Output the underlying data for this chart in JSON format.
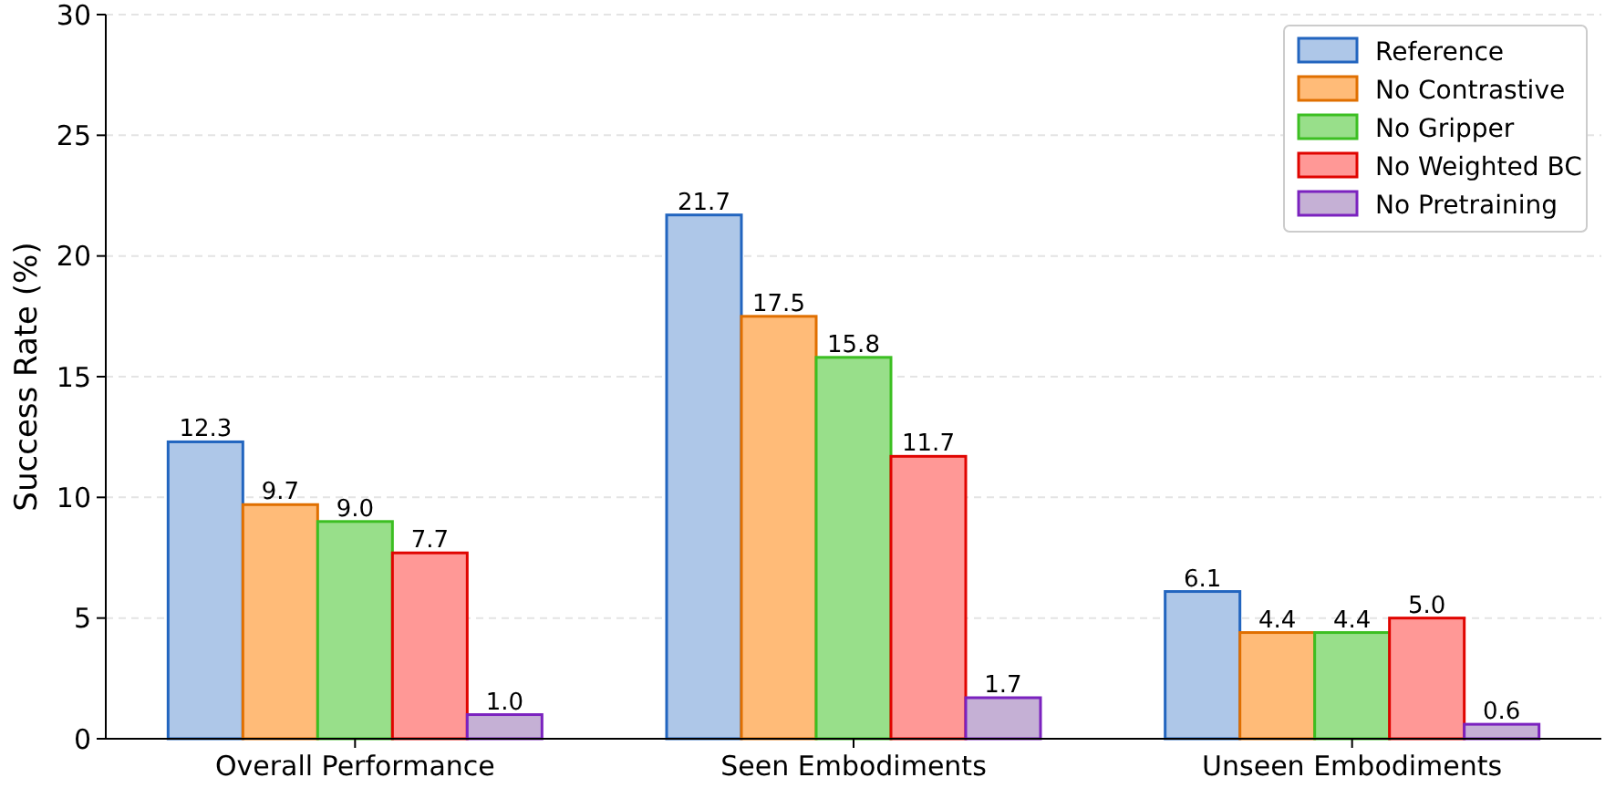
{
  "chart_data": {
    "type": "bar",
    "ylabel": "Success Rate (%)",
    "categories": [
      "Overall Performance",
      "Seen Embodiments",
      "Unseen Embodiments"
    ],
    "series": [
      {
        "name": "Reference",
        "color": "#aec7e8",
        "values": [
          12.3,
          21.7,
          6.1
        ],
        "value_labels": [
          "12.3",
          "21.7",
          "6.1"
        ]
      },
      {
        "name": "No Contrastive",
        "color": "#ffbb78",
        "values": [
          9.7,
          17.5,
          4.4
        ],
        "value_labels": [
          "9.7",
          "17.5",
          "4.4"
        ]
      },
      {
        "name": "No Gripper",
        "color": "#98df8a",
        "values": [
          9.0,
          15.8,
          4.4
        ],
        "value_labels": [
          "9.0",
          "15.8",
          "4.4"
        ]
      },
      {
        "name": "No Weighted BC",
        "color": "#ff9896",
        "values": [
          7.7,
          11.7,
          5.0
        ],
        "value_labels": [
          "7.7",
          "11.7",
          "5.0"
        ]
      },
      {
        "name": "No Pretraining",
        "color": "#c5b0d5",
        "values": [
          1.0,
          1.7,
          0.6
        ],
        "value_labels": [
          "1.0",
          "1.7",
          "0.6"
        ]
      }
    ],
    "ylim": [
      0,
      30
    ],
    "yticks": [
      0,
      5,
      10,
      15,
      20,
      25,
      30
    ],
    "grid": "y",
    "legend": "top right"
  }
}
